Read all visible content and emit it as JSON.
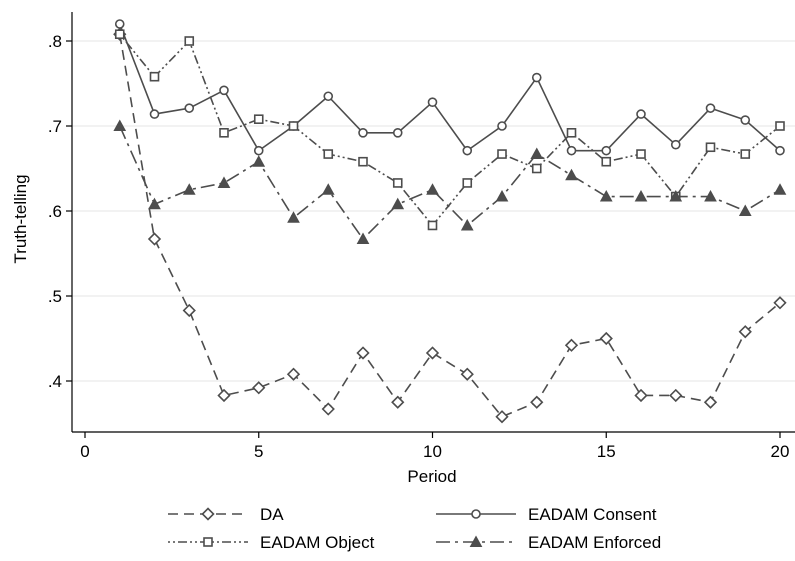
{
  "chart_data": {
    "type": "line",
    "xlabel": "Period",
    "ylabel": "Truth-telling",
    "xlim": [
      0,
      20
    ],
    "ylim": [
      0.35,
      0.83
    ],
    "grid": "horizontal",
    "legend_position": "bottom",
    "x_ticks": [
      {
        "value": 0,
        "label": "0"
      },
      {
        "value": 5,
        "label": "5"
      },
      {
        "value": 10,
        "label": "10"
      },
      {
        "value": 15,
        "label": "15"
      },
      {
        "value": 20,
        "label": "20"
      }
    ],
    "y_ticks": [
      {
        "value": 0.4,
        "label": ".4"
      },
      {
        "value": 0.5,
        "label": ".5"
      },
      {
        "value": 0.6,
        "label": ".6"
      },
      {
        "value": 0.7,
        "label": ".7"
      },
      {
        "value": 0.8,
        "label": ".8"
      }
    ],
    "x": [
      1,
      2,
      3,
      4,
      5,
      6,
      7,
      8,
      9,
      10,
      11,
      12,
      13,
      14,
      15,
      16,
      17,
      18,
      19,
      20
    ],
    "series": [
      {
        "name": "DA",
        "marker": "diamond",
        "dash": "long-dash",
        "values": [
          0.808,
          0.567,
          0.483,
          0.383,
          0.392,
          0.408,
          0.367,
          0.433,
          0.375,
          0.433,
          0.408,
          0.358,
          0.375,
          0.442,
          0.45,
          0.383,
          0.383,
          0.375,
          0.458,
          0.492
        ]
      },
      {
        "name": "EADAM Consent",
        "marker": "circle",
        "dash": "solid",
        "values": [
          0.82,
          0.714,
          0.721,
          0.742,
          0.671,
          0.7,
          0.735,
          0.692,
          0.692,
          0.728,
          0.671,
          0.7,
          0.757,
          0.671,
          0.671,
          0.714,
          0.678,
          0.721,
          0.707,
          0.671
        ]
      },
      {
        "name": "EADAM Object",
        "marker": "square",
        "dash": "dot-dash",
        "values": [
          0.808,
          0.758,
          0.8,
          0.692,
          0.708,
          0.7,
          0.667,
          0.658,
          0.633,
          0.583,
          0.633,
          0.667,
          0.65,
          0.692,
          0.658,
          0.667,
          0.617,
          0.675,
          0.667,
          0.7
        ]
      },
      {
        "name": "EADAM Enforced",
        "marker": "triangle",
        "dash": "long-dash-dot",
        "values": [
          0.7,
          0.608,
          0.625,
          0.633,
          0.658,
          0.592,
          0.625,
          0.567,
          0.608,
          0.625,
          0.583,
          0.617,
          0.667,
          0.642,
          0.617,
          0.617,
          0.617,
          0.617,
          0.6,
          0.625
        ]
      }
    ]
  }
}
